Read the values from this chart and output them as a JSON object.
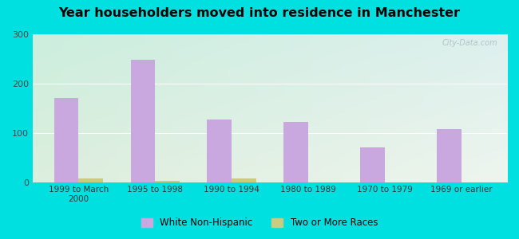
{
  "title": "Year householders moved into residence in Manchester",
  "categories": [
    "1999 to March\n2000",
    "1995 to 1998",
    "1990 to 1994",
    "1980 to 1989",
    "1970 to 1979",
    "1969 or earlier"
  ],
  "white_non_hispanic": [
    170,
    248,
    127,
    122,
    70,
    108
  ],
  "two_or_more_races": [
    8,
    2,
    8,
    0,
    0,
    0
  ],
  "bar_color_white": "#c9a8e0",
  "bar_color_two": "#c8cc80",
  "background_outer": "#00e0e0",
  "background_inner_colors": [
    "#c5e8d8",
    "#e8f4e8",
    "#f2f8ee",
    "#ffffff"
  ],
  "ylim": [
    0,
    300
  ],
  "yticks": [
    0,
    100,
    200,
    300
  ],
  "bar_width": 0.32,
  "legend_label_white": "White Non-Hispanic",
  "legend_label_two": "Two or More Races",
  "watermark": "City-Data.com"
}
